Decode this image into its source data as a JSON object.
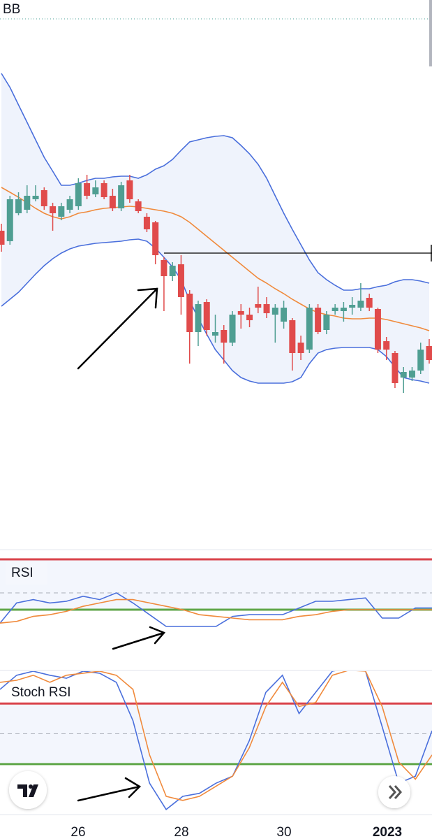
{
  "chart_data": [
    {
      "type": "candlestick",
      "title": "BB",
      "ylim": [
        0,
        800
      ],
      "up_color": "#4f9e92",
      "down_color": "#e04b4b",
      "open": [
        470,
        455,
        495,
        500,
        515,
        528,
        505,
        490,
        500,
        505,
        538,
        522,
        538,
        520,
        502,
        542,
        512,
        490,
        482,
        428,
        405,
        422,
        380,
        325,
        368,
        320,
        328,
        310,
        355,
        350,
        365,
        365,
        350,
        340,
        342,
        310,
        300,
        360,
        328,
        355,
        355,
        360,
        360,
        374,
        358,
        312,
        295,
        260,
        260,
        270,
        305
      ],
      "high": [
        480,
        520,
        525,
        535,
        535,
        532,
        510,
        510,
        520,
        545,
        550,
        542,
        542,
        530,
        540,
        550,
        515,
        495,
        484,
        432,
        425,
        435,
        385,
        370,
        372,
        350,
        335,
        355,
        365,
        360,
        390,
        375,
        365,
        370,
        345,
        320,
        365,
        365,
        355,
        365,
        368,
        375,
        395,
        380,
        360,
        318,
        298,
        275,
        275,
        310,
        315
      ],
      "low": [
        440,
        450,
        492,
        495,
        512,
        500,
        470,
        485,
        495,
        500,
        515,
        518,
        515,
        498,
        498,
        510,
        495,
        468,
        422,
        355,
        398,
        350,
        280,
        305,
        320,
        310,
        280,
        305,
        330,
        332,
        352,
        345,
        310,
        330,
        270,
        285,
        295,
        322,
        322,
        350,
        340,
        350,
        355,
        355,
        295,
        285,
        245,
        238,
        255,
        265,
        280
      ],
      "close": [
        450,
        515,
        515,
        520,
        520,
        505,
        495,
        505,
        515,
        538,
        520,
        532,
        518,
        502,
        535,
        515,
        498,
        472,
        435,
        405,
        420,
        375,
        325,
        365,
        328,
        325,
        310,
        350,
        350,
        342,
        360,
        352,
        360,
        360,
        295,
        295,
        360,
        325,
        350,
        360,
        360,
        364,
        370,
        360,
        300,
        300,
        252,
        268,
        270,
        300,
        285
      ],
      "series": [
        {
          "color": "#4a6fdc",
          "values": [
            695,
            675,
            650,
            625,
            600,
            575,
            555,
            535,
            535,
            538,
            542,
            545,
            545,
            547,
            548,
            548,
            545,
            550,
            558,
            563,
            572,
            585,
            597,
            600,
            603,
            605,
            606,
            603,
            592,
            580,
            565,
            545,
            520,
            495,
            472,
            450,
            428,
            410,
            400,
            392,
            385,
            385,
            387,
            387,
            390,
            392,
            397,
            400,
            400,
            398,
            395
          ]
        },
        {
          "color": "#f08a3c",
          "values": [
            532,
            525,
            518,
            510,
            502,
            495,
            490,
            487,
            490,
            495,
            497,
            500,
            502,
            503,
            504,
            505,
            504,
            502,
            500,
            498,
            495,
            490,
            482,
            472,
            462,
            452,
            442,
            432,
            422,
            412,
            402,
            395,
            387,
            380,
            372,
            365,
            358,
            353,
            350,
            348,
            345,
            344,
            344,
            345,
            345,
            343,
            340,
            337,
            334,
            331,
            327
          ]
        },
        {
          "color": "#4a6fdc",
          "values": [
            362,
            372,
            382,
            395,
            408,
            420,
            430,
            438,
            444,
            448,
            450,
            452,
            453,
            454,
            455,
            457,
            458,
            455,
            445,
            432,
            418,
            400,
            370,
            345,
            322,
            300,
            285,
            270,
            260,
            255,
            252,
            252,
            252,
            252,
            254,
            260,
            280,
            295,
            300,
            302,
            303,
            303,
            303,
            303,
            300,
            290,
            275,
            260,
            257,
            255,
            252
          ]
        }
      ],
      "hline": 438
    },
    {
      "type": "line",
      "title": "RSI",
      "ylim": [
        5,
        70
      ],
      "levels": [
        70,
        50,
        40
      ],
      "series": [
        {
          "color": "#4a6fdc",
          "values": [
            32,
            44,
            46,
            44,
            45,
            48,
            46,
            50,
            44,
            37,
            30,
            30,
            30,
            30,
            36,
            37,
            37,
            37,
            41,
            45,
            45,
            46,
            47,
            35,
            35,
            41,
            41
          ]
        },
        {
          "color": "#f08a3c",
          "values": [
            32,
            33,
            36,
            37,
            39,
            42,
            44,
            46,
            46,
            44,
            42,
            40,
            37,
            36,
            35,
            34,
            34,
            34,
            36,
            37,
            39,
            40,
            40,
            40,
            40,
            40,
            40
          ]
        }
      ]
    },
    {
      "type": "line",
      "title": "Stoch RSI",
      "ylim": [
        -30,
        112
      ],
      "levels": [
        80,
        50,
        20
      ],
      "series": [
        {
          "color": "#4a6fdc",
          "values": [
            94,
            108,
            112,
            108,
            105,
            112,
            110,
            101,
            63,
            1,
            -25,
            -12,
            -9,
            1,
            8,
            43,
            91,
            108,
            70,
            91,
            112,
            115,
            112,
            57,
            1,
            8,
            53
          ]
        },
        {
          "color": "#f08a3c",
          "values": [
            101,
            103,
            108,
            101,
            108,
            110,
            112,
            108,
            94,
            29,
            -12,
            -16,
            -12,
            -2,
            8,
            36,
            77,
            101,
            77,
            81,
            108,
            113,
            112,
            77,
            22,
            5,
            29
          ]
        }
      ],
      "x_labels": [
        "26",
        "28",
        "30",
        "2023"
      ]
    }
  ]
}
